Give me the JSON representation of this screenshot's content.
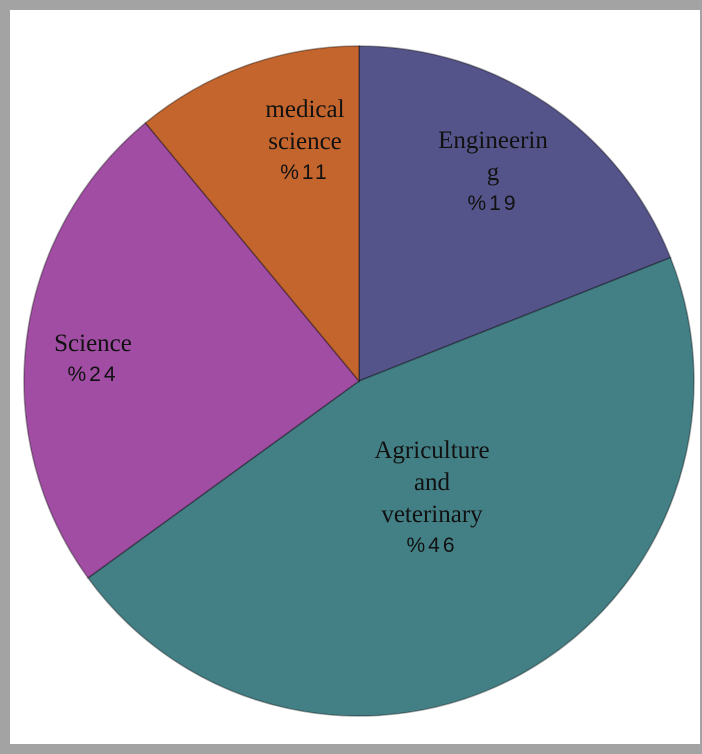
{
  "chart_data": {
    "type": "pie",
    "categories": [
      "Engineering",
      "Agriculture and veterinary",
      "Science",
      "medical science"
    ],
    "values": [
      19,
      46,
      24,
      11
    ],
    "value_labels": [
      "%19",
      "%46",
      "%24",
      "%11"
    ],
    "colors": [
      "#55548a",
      "#438086",
      "#a04da3",
      "#c4652d"
    ]
  }
}
